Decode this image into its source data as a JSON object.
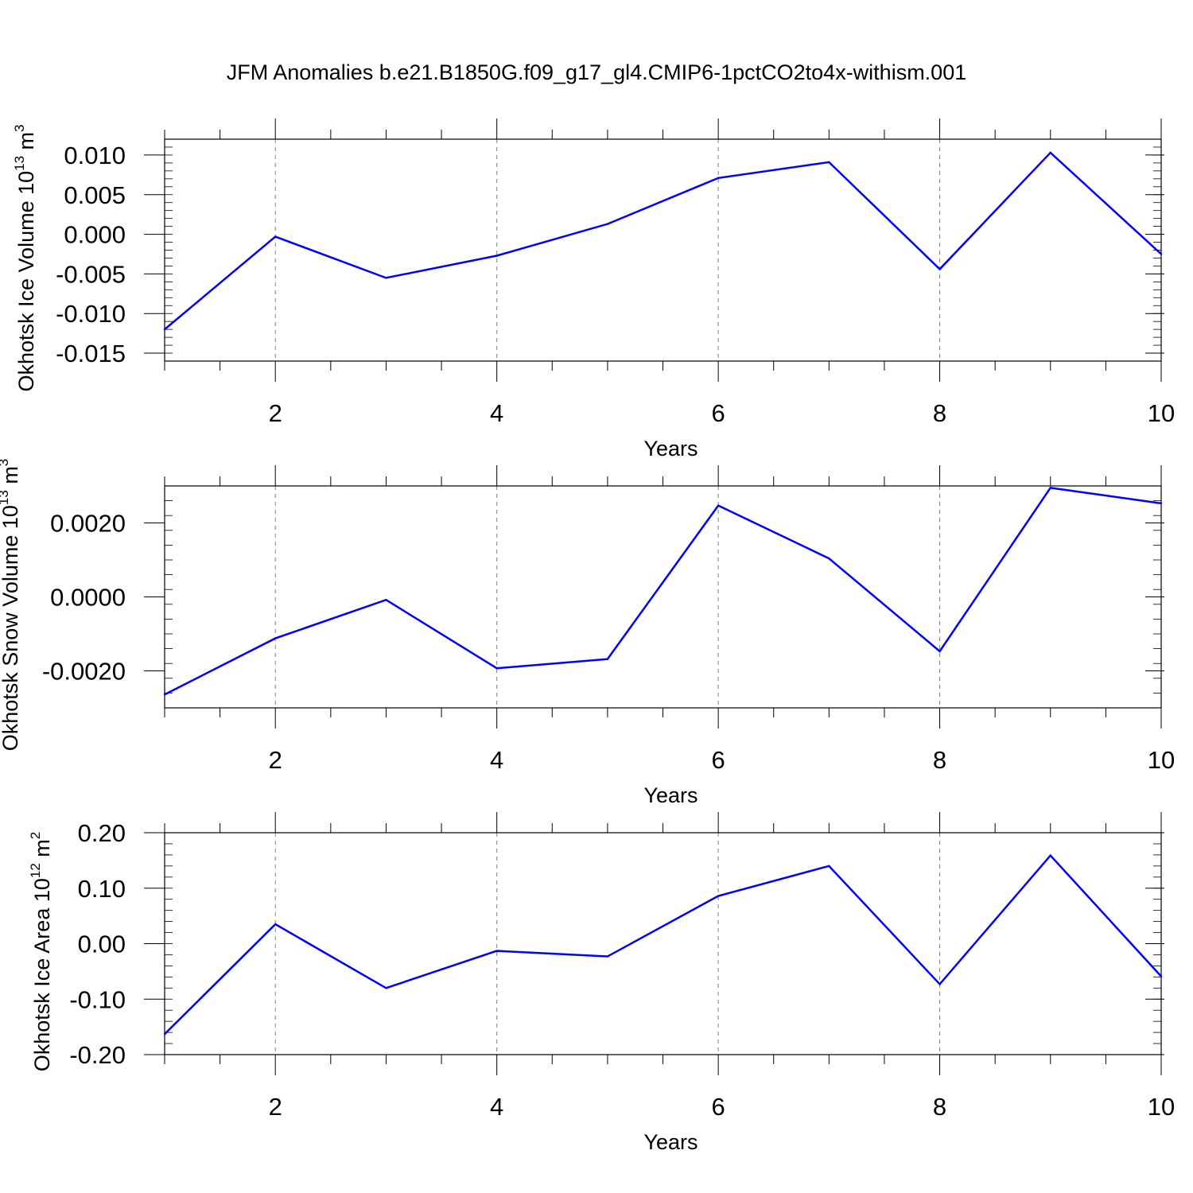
{
  "title": "JFM Anomalies b.e21.B1850G.f09_g17_gl4.CMIP6-1pctCO2to4x-withism.001",
  "colors": {
    "line": "#0000ff",
    "axis": "#000000",
    "grid": "#808080"
  },
  "chart_data": [
    {
      "type": "line",
      "ylabel": {
        "text": "Okhotsk Ice Volume 10",
        "exp": "13",
        "unit": " m",
        "unit_exp": "3"
      },
      "xlabel": "Years",
      "xlim": [
        1,
        10
      ],
      "ylim": [
        -0.016,
        0.012
      ],
      "xticks": [
        2,
        4,
        6,
        8,
        10
      ],
      "xtick_labels": [
        "2",
        "4",
        "6",
        "8",
        "10"
      ],
      "yticks": [
        0.01,
        0.005,
        0.0,
        -0.005,
        -0.01,
        -0.015
      ],
      "ytick_labels": [
        "0.010",
        "0.005",
        "0.000",
        "-0.005",
        "-0.010",
        "-0.015"
      ],
      "grid": "vertical dashed",
      "x": [
        1,
        2,
        3,
        4,
        5,
        6,
        7,
        8,
        9,
        10
      ],
      "y": [
        -0.012,
        -0.0003,
        -0.0055,
        -0.0027,
        0.0013,
        0.0071,
        0.0091,
        -0.0044,
        0.0103,
        -0.0025
      ]
    },
    {
      "type": "line",
      "ylabel": {
        "text": "Okhotsk Snow Volume 10",
        "exp": "13",
        "unit": " m",
        "unit_exp": "3"
      },
      "xlabel": "Years",
      "xlim": [
        1,
        10
      ],
      "ylim": [
        -0.003,
        0.003
      ],
      "xticks": [
        2,
        4,
        6,
        8,
        10
      ],
      "xtick_labels": [
        "2",
        "4",
        "6",
        "8",
        "10"
      ],
      "yticks": [
        0.002,
        0.0,
        -0.002
      ],
      "ytick_labels": [
        "0.0020",
        "0.0000",
        "-0.0020"
      ],
      "grid": "vertical dashed",
      "x": [
        1,
        2,
        3,
        4,
        5,
        6,
        7,
        8,
        9,
        10
      ],
      "y": [
        -0.00264,
        -0.00112,
        -8e-05,
        -0.00193,
        -0.00168,
        0.00247,
        0.00104,
        -0.00147,
        0.00295,
        0.00253
      ]
    },
    {
      "type": "line",
      "ylabel": {
        "text": "Okhotsk Ice Area 10",
        "exp": "12",
        "unit": " m",
        "unit_exp": "2"
      },
      "xlabel": "Years",
      "xlim": [
        1,
        10
      ],
      "ylim": [
        -0.2,
        0.2
      ],
      "xticks": [
        2,
        4,
        6,
        8,
        10
      ],
      "xtick_labels": [
        "2",
        "4",
        "6",
        "8",
        "10"
      ],
      "yticks": [
        0.2,
        0.1,
        0.0,
        -0.1,
        -0.2
      ],
      "ytick_labels": [
        "0.20",
        "0.10",
        "0.00",
        "-0.10",
        "-0.20"
      ],
      "grid": "vertical dashed",
      "x": [
        1,
        2,
        3,
        4,
        5,
        6,
        7,
        8,
        9,
        10
      ],
      "y": [
        -0.163,
        0.035,
        -0.08,
        -0.013,
        -0.023,
        0.086,
        0.14,
        -0.073,
        0.159,
        -0.059
      ]
    }
  ]
}
